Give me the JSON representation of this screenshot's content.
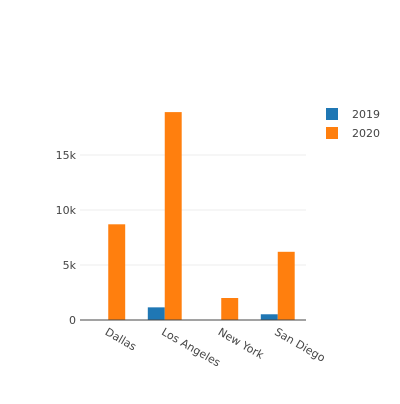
{
  "chart_data": {
    "type": "bar",
    "categories": [
      "Dallas",
      "Los Angeles",
      "New York",
      "San Diego"
    ],
    "series": [
      {
        "name": "2019",
        "color": "#1f77b4",
        "values": [
          0,
          1150,
          0,
          520
        ]
      },
      {
        "name": "2020",
        "color": "#ff7f0e",
        "values": [
          8700,
          18900,
          2000,
          6200
        ]
      }
    ],
    "ylim": [
      0,
      20000
    ],
    "yticks": [
      0,
      5000,
      10000,
      15000
    ],
    "ytick_labels": [
      "0",
      "5k",
      "10k",
      "15k"
    ],
    "grid": true,
    "legend": "top-right",
    "title": "",
    "xlabel": "",
    "ylabel": ""
  }
}
